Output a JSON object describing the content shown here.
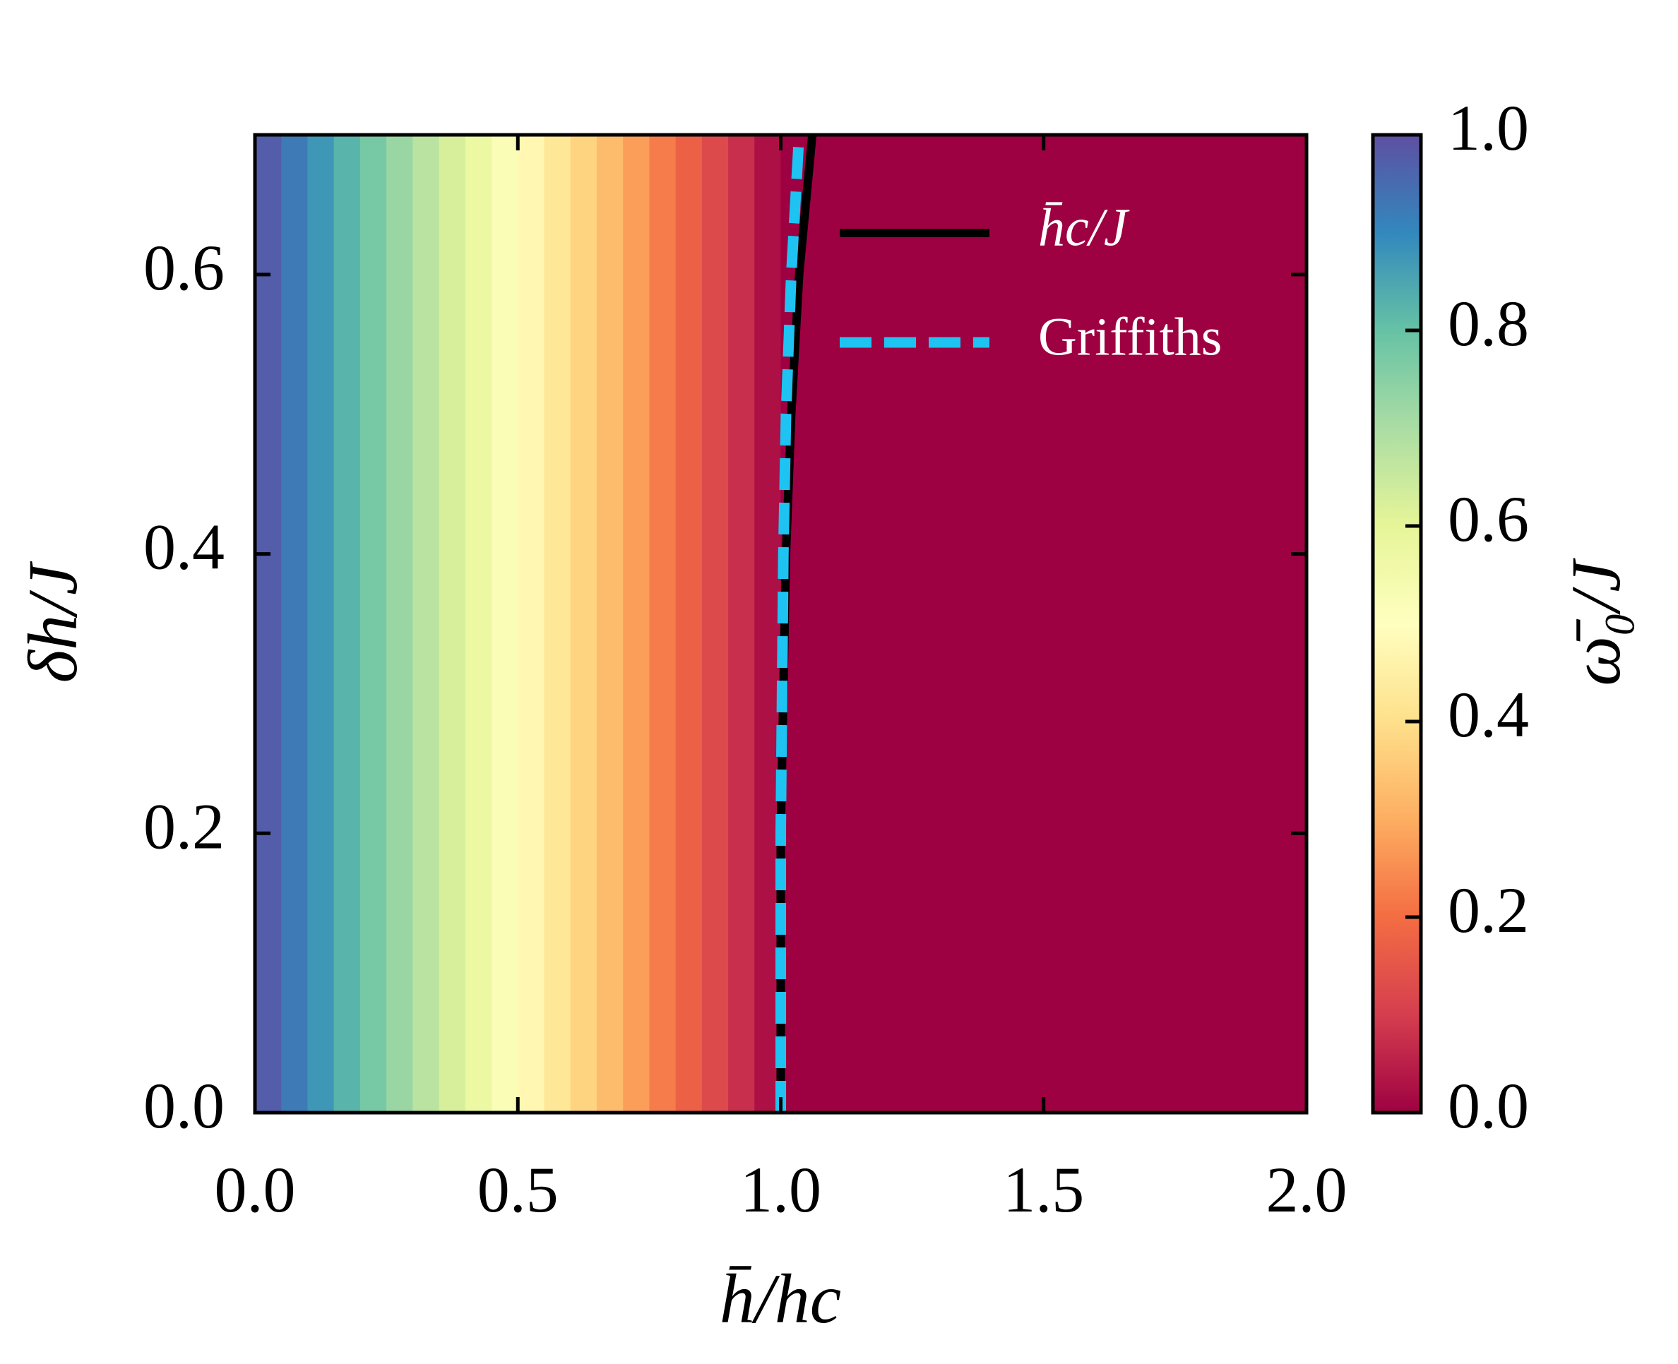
{
  "chart_data": {
    "type": "heatmap",
    "x_label": "h̄/hc",
    "y_label": "δh/J",
    "colorbar_label": "ω̄₀/J",
    "colormap": "Spectral",
    "xlim": [
      0,
      2
    ],
    "xticks": [
      {
        "value": 0,
        "label": "0.0"
      },
      {
        "value": 0.5,
        "label": "0.5"
      },
      {
        "value": 1,
        "label": "1.0"
      },
      {
        "value": 1.5,
        "label": "1.5"
      },
      {
        "value": 2,
        "label": "2.0"
      }
    ],
    "ylim": [
      0,
      0.7
    ],
    "yticks": [
      {
        "value": 0,
        "label": "0.0"
      },
      {
        "value": 0.2,
        "label": "0.2"
      },
      {
        "value": 0.4,
        "label": "0.4"
      },
      {
        "value": 0.6,
        "label": "0.6"
      }
    ],
    "clim": [
      0,
      1
    ],
    "cticks": [
      {
        "value": 0,
        "label": "0.0"
      },
      {
        "value": 0.2,
        "label": "0.2"
      },
      {
        "value": 0.4,
        "label": "0.4"
      },
      {
        "value": 0.6,
        "label": "0.6"
      },
      {
        "value": 0.8,
        "label": "0.8"
      },
      {
        "value": 1,
        "label": "1.0"
      }
    ],
    "heatmap": {
      "x": [
        0.025,
        0.075,
        0.125,
        0.175,
        0.225,
        0.275,
        0.325,
        0.375,
        0.425,
        0.475,
        0.525,
        0.575,
        0.625,
        0.675,
        0.725,
        0.775,
        0.825,
        0.875,
        0.925,
        0.975,
        1.025,
        1.075,
        1.125,
        1.175,
        1.225,
        1.275,
        1.325,
        1.375,
        1.425,
        1.475,
        1.525,
        1.575,
        1.625,
        1.675,
        1.725,
        1.775,
        1.825,
        1.875,
        1.925,
        1.975
      ],
      "values": [
        0.975,
        0.925,
        0.875,
        0.825,
        0.775,
        0.725,
        0.675,
        0.625,
        0.575,
        0.525,
        0.475,
        0.425,
        0.375,
        0.325,
        0.275,
        0.225,
        0.175,
        0.125,
        0.075,
        0.025,
        0,
        0,
        0,
        0,
        0,
        0,
        0,
        0,
        0,
        0,
        0,
        0,
        0,
        0,
        0,
        0,
        0,
        0,
        0,
        0
      ]
    },
    "series": [
      {
        "name": "h̄c/J",
        "color": "#000000",
        "style": "solid",
        "x": [
          1.0,
          1.0,
          1.01,
          1.02,
          1.035,
          1.06
        ],
        "values": [
          0,
          0.2,
          0.4,
          0.5,
          0.6,
          0.7
        ]
      },
      {
        "name": "Griffiths",
        "color": "#1ec3f2",
        "style": "dashed",
        "x": [
          1.0,
          1.0,
          1.005,
          1.01,
          1.02,
          1.035
        ],
        "values": [
          0,
          0.2,
          0.4,
          0.5,
          0.6,
          0.7
        ]
      }
    ]
  }
}
